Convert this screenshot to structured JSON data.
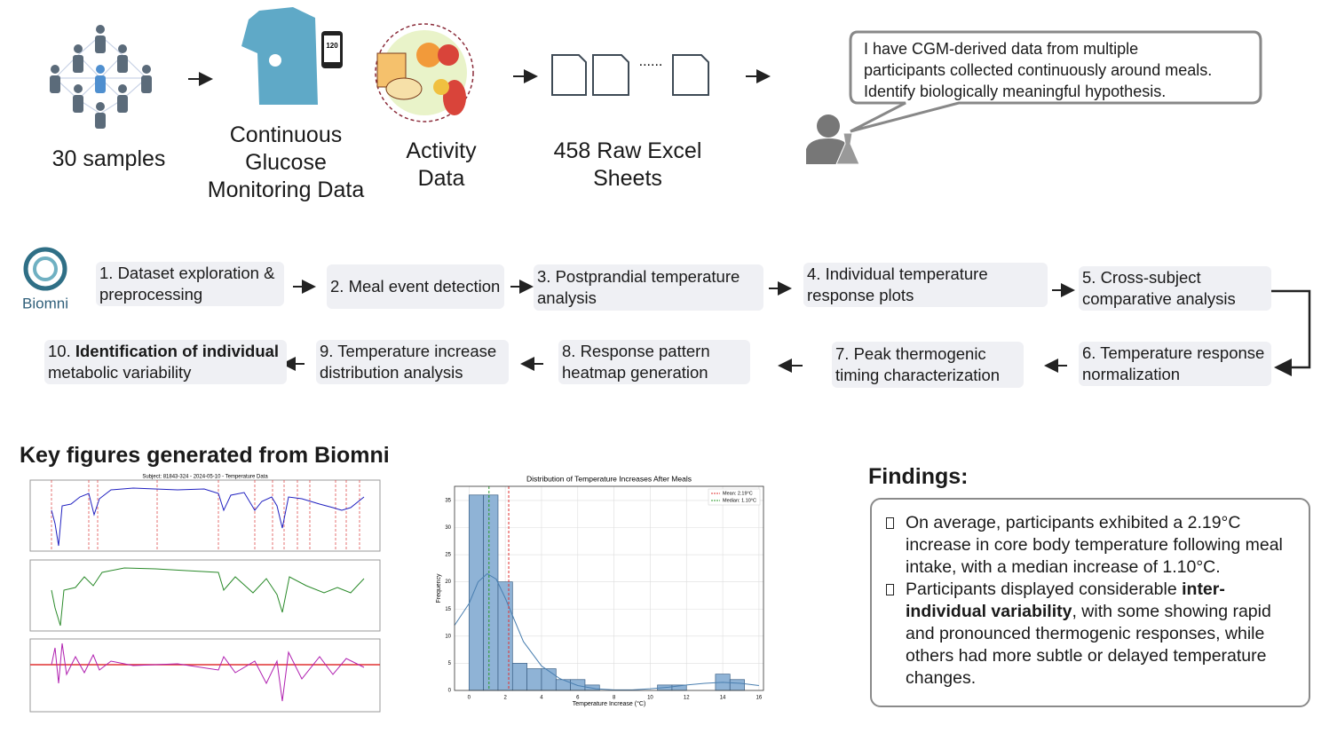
{
  "inputs": {
    "samples": "30 samples",
    "cgm": [
      "Continuous",
      "Glucose",
      "Monitoring Data"
    ],
    "activity": [
      "Activity",
      "Data"
    ],
    "sheets": [
      "458 Raw Excel",
      "Sheets"
    ],
    "phone_reading": "120",
    "ellipsis": "......"
  },
  "prompt": [
    "I have CGM-derived data from multiple",
    "participants collected continuously around meals.",
    "Identify biologically meaningful hypothesis."
  ],
  "logo": "Biomni",
  "steps": [
    [
      {
        "text": "1. Dataset exploration & preprocessing"
      }
    ],
    [
      {
        "text": "2. Meal event detection"
      }
    ],
    [
      {
        "text": "3. Postprandial temperature analysis"
      }
    ],
    [
      {
        "text": "4. Individual temperature response plots"
      }
    ],
    [
      {
        "text": "5. Cross-subject comparative analysis"
      }
    ],
    [
      {
        "text": "6. Temperature response normalization"
      }
    ],
    [
      {
        "text": "7. Peak thermogenic timing characterization"
      }
    ],
    [
      {
        "text": "8. Response pattern heatmap generation"
      }
    ],
    [
      {
        "text": "9. Temperature increase distribution analysis"
      }
    ],
    [
      {
        "text": "10. "
      },
      {
        "text": "Identification of individual",
        "bold": true
      },
      {
        "text": " metabolic variability"
      }
    ]
  ],
  "key_figures_title": "Key figures generated from Biomni",
  "timeseries_title": "Subject: 81843-324 - 2024-05-10 - Temperature Data",
  "chart_data": {
    "type": "histogram",
    "title": "Distribution of Temperature Increases After Meals",
    "x_label": "Temperature Increase (°C)",
    "y_label": "Frequency",
    "bins": [
      0,
      0.8,
      1.6,
      2.4,
      3.2,
      4.0,
      4.8,
      5.6,
      6.4,
      7.2,
      8.0,
      8.8,
      9.6,
      10.4,
      11.2,
      12.0,
      12.8,
      13.6,
      14.4,
      15.2,
      16.0
    ],
    "counts": [
      36,
      36,
      20,
      5,
      4,
      4,
      2,
      2,
      1,
      0,
      0,
      0,
      0,
      1,
      1,
      0,
      0,
      3,
      2,
      0
    ],
    "color": "#8fb3d6",
    "edge_color": "#3a5f85",
    "xlim": [
      -0.8,
      16.25
    ],
    "ylim": [
      0,
      37.6
    ],
    "xticks": [
      0,
      2,
      4,
      6,
      8,
      10,
      12,
      14,
      16
    ],
    "yticks": [
      0,
      5,
      10,
      15,
      20,
      25,
      30,
      35
    ],
    "grid": true,
    "kde": {
      "color": "#4a7fb0",
      "x": [
        -0.8,
        0,
        0.5,
        1,
        1.5,
        2,
        3,
        4,
        5,
        6,
        7,
        8,
        9,
        10,
        11,
        12,
        13,
        14,
        15,
        16
      ],
      "values": [
        12,
        16,
        20,
        21.5,
        20.5,
        17,
        9,
        4.5,
        2.2,
        0.9,
        0.3,
        0.1,
        0.1,
        0.3,
        0.6,
        1,
        1.3,
        1.5,
        1.3,
        0.9
      ]
    },
    "vlines": [
      {
        "name": "Mean: 2.19°C",
        "value": 2.19,
        "color": "#e03030"
      },
      {
        "name": "Median: 1.10°C",
        "value": 1.1,
        "color": "#2a9a2a"
      }
    ],
    "legend": "upper right"
  },
  "findings": {
    "title": "Findings:",
    "items": [
      [
        {
          "text": "On average, participants exhibited a 2.19°C increase in core body temperature following meal intake, with a median increase of 1.10°C."
        }
      ],
      [
        {
          "text": "Participants displayed considerable "
        },
        {
          "text": "inter-individual variability",
          "bold": true
        },
        {
          "text": ", with some showing rapid and pronounced thermogenic responses, while others had more subtle or delayed temperature changes."
        }
      ]
    ]
  }
}
